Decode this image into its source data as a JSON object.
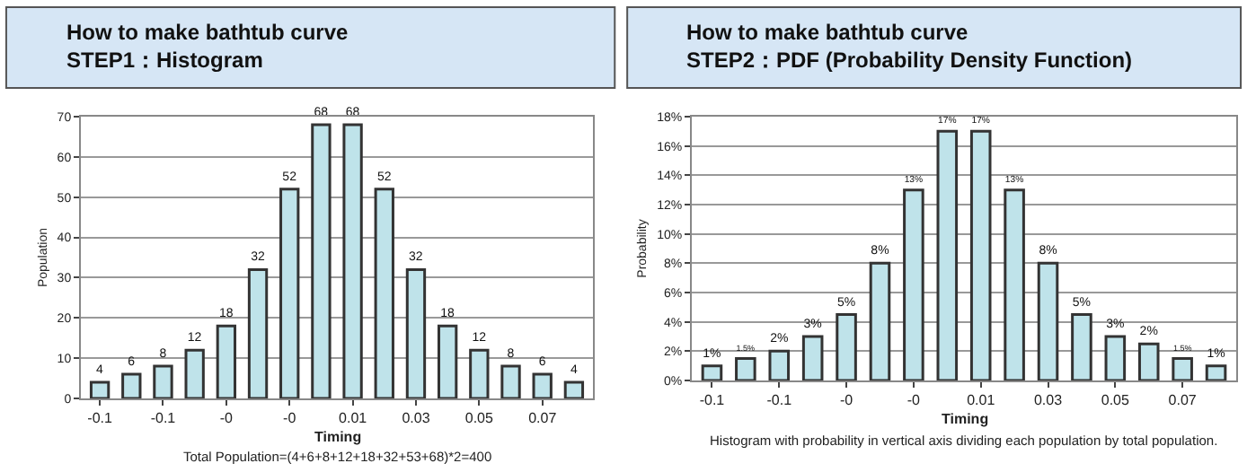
{
  "chart_data": [
    {
      "type": "bar",
      "title": "How to make bathtub curve",
      "subtitle": "STEP1：Histogram",
      "xlabel": "Timing",
      "ylabel": "Population",
      "categories": [
        "-0.1",
        null,
        "-0.1",
        null,
        "-0",
        null,
        "-0",
        null,
        "0.01",
        null,
        "0.03",
        null,
        "0.05",
        null,
        "0.07",
        null
      ],
      "values": [
        4,
        6,
        8,
        12,
        18,
        32,
        52,
        68,
        68,
        52,
        32,
        18,
        12,
        8,
        6,
        4
      ],
      "color": "#bfe3ea",
      "ylim": [
        0,
        70
      ],
      "yticks": [
        0,
        10,
        20,
        30,
        40,
        50,
        60,
        70
      ],
      "grid": "y",
      "data_labels": true,
      "annotations": [
        "Total Population=(4+6+8+12+18+32+53+68)*2=400"
      ]
    },
    {
      "type": "bar",
      "title": "How to make bathtub curve",
      "subtitle": "STEP2：PDF (Probability Density Function)",
      "xlabel": "Timing",
      "ylabel": "Probability",
      "categories": [
        "-0.1",
        null,
        "-0.1",
        null,
        "-0",
        null,
        "-0",
        null,
        "0.01",
        null,
        "0.03",
        null,
        "0.05",
        null,
        "0.07",
        null
      ],
      "values": [
        1,
        1.5,
        2,
        3,
        4.5,
        8,
        13,
        17,
        17,
        13,
        8,
        4.5,
        3,
        2.5,
        1.5,
        1
      ],
      "value_labels": [
        "1%",
        "1.5%",
        "2%",
        "3%",
        "5%",
        "8%",
        "13%",
        "17%",
        "17%",
        "13%",
        "8%",
        "5%",
        "3%",
        "2%",
        "1.5%",
        "1%"
      ],
      "color": "#bfe3ea",
      "ylim": [
        0,
        18
      ],
      "grid": "y",
      "yticks": [
        {
          "value": 0,
          "label": "0%"
        },
        {
          "value": 2,
          "label": "2%"
        },
        {
          "value": 4,
          "label": "4%"
        },
        {
          "value": 6,
          "label": "6%"
        },
        {
          "value": 8,
          "label": "8%"
        },
        {
          "value": 10,
          "label": "10%"
        },
        {
          "value": 12,
          "label": "12%"
        },
        {
          "value": 14,
          "label": "14%"
        },
        {
          "value": 16,
          "label": "16%"
        },
        {
          "value": 18,
          "label": "18%"
        }
      ],
      "annotations": [
        "Histogram with probability in vertical axis dividing each population by total population."
      ]
    }
  ]
}
